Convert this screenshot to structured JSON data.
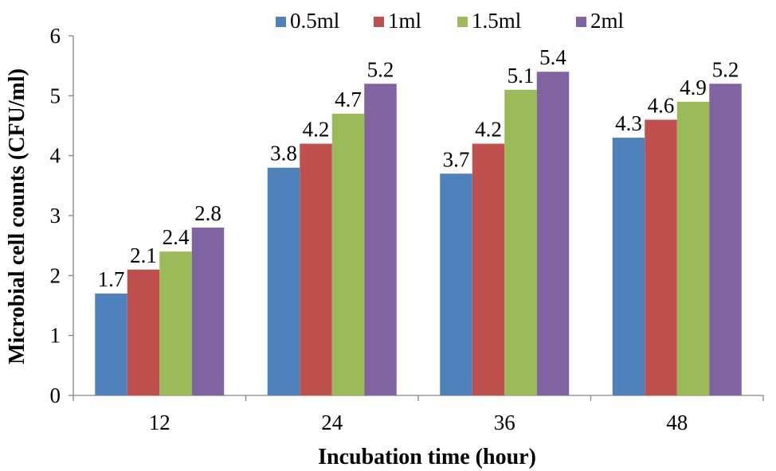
{
  "chart_data": {
    "type": "bar",
    "title": "",
    "xlabel": "Incubation time (hour)",
    "ylabel": "Microbial cell counts (CFU/ml)",
    "categories": [
      "12",
      "24",
      "36",
      "48"
    ],
    "ylim": [
      0,
      6
    ],
    "yticks": [
      "0",
      "1",
      "2",
      "3",
      "4",
      "5",
      "6"
    ],
    "grid": false,
    "legend_position": "top",
    "series": [
      {
        "name": "0.5ml",
        "color": "#4F81BD",
        "values": [
          1.7,
          3.8,
          3.7,
          4.3
        ],
        "labels": [
          "1.7",
          "3.8",
          "3.7",
          "4.3"
        ]
      },
      {
        "name": "1ml",
        "color": "#C0504D",
        "values": [
          2.1,
          4.2,
          4.2,
          4.6
        ],
        "labels": [
          "2.1",
          "4.2",
          "4.2",
          "4.6"
        ]
      },
      {
        "name": "1.5ml",
        "color": "#9BBB59",
        "values": [
          2.4,
          4.7,
          5.1,
          4.9
        ],
        "labels": [
          "2.4",
          "4.7",
          "5.1",
          "4.9"
        ]
      },
      {
        "name": "2ml",
        "color": "#8064A2",
        "values": [
          2.8,
          5.2,
          5.4,
          5.2
        ],
        "labels": [
          "2.8",
          "5.2",
          "5.4",
          "5.2"
        ]
      }
    ]
  }
}
